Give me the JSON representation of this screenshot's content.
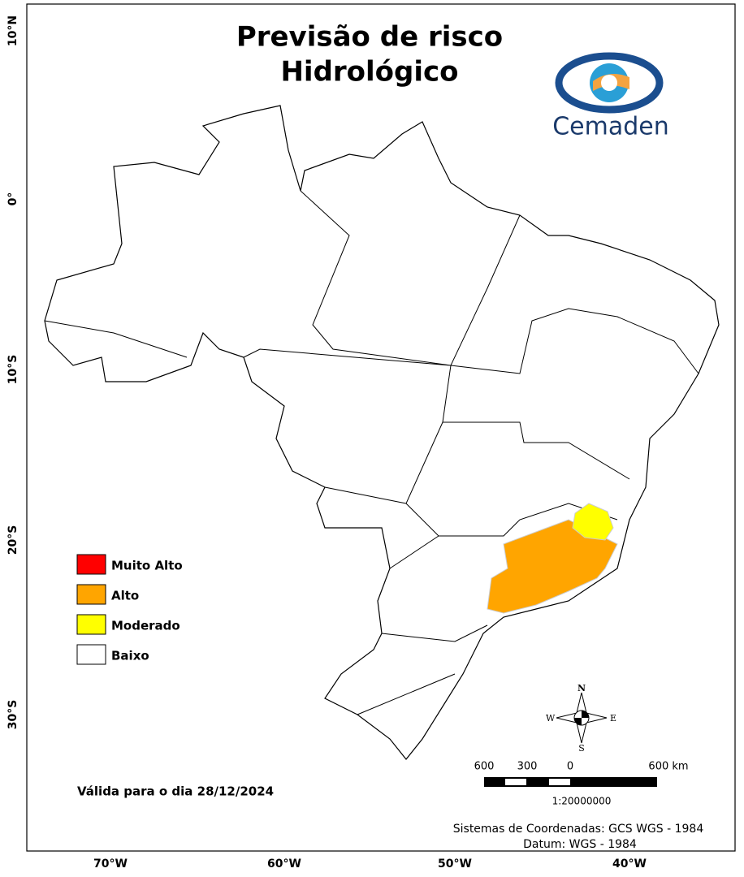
{
  "title": [
    "Previsão de risco",
    "Hidrológico"
  ],
  "logo": "Cemaden",
  "legend": [
    {
      "name": "Muito Alto",
      "color": "#ff0000"
    },
    {
      "name": "Alto",
      "color": "#ffa500"
    },
    {
      "name": "Moderado",
      "color": "#ffff00"
    },
    {
      "name": "Baixo",
      "color": "#ffffff"
    }
  ],
  "validity": "Válida para o dia 28/12/2024",
  "scale_bar": {
    "labels": [
      "600",
      "300",
      "0",
      "600 km"
    ],
    "ratio": "1:20000000"
  },
  "compass": {
    "n": "N",
    "s": "S",
    "e": "E",
    "w": "W"
  },
  "reference": [
    "Sistemas de Coordenadas: GCS WGS - 1984",
    "Datum: WGS - 1984"
  ],
  "lat_labels": [
    "10°N",
    "0°",
    "10°S",
    "20°S",
    "30°S"
  ],
  "lon_labels": [
    "70°W",
    "60°W",
    "50°W",
    "40°W"
  ]
}
